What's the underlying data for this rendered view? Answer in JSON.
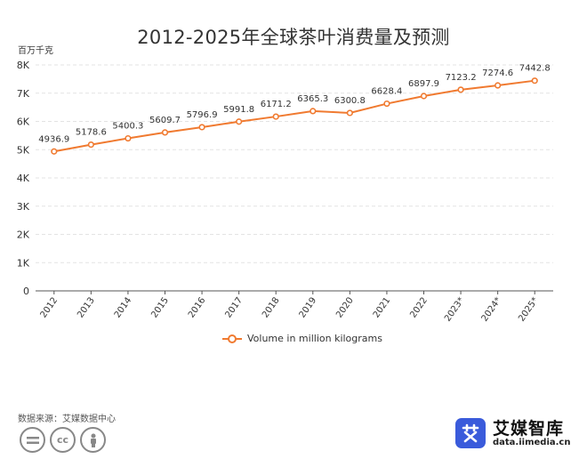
{
  "title": "2012-2025年全球茶叶消费量及预测",
  "unit_label": "百万千克",
  "source_text": "数据来源：艾媒数据中心",
  "brand": {
    "name": "艾媒智库",
    "url": "data.iimedia.cn"
  },
  "colors": {
    "line": "#f07a30",
    "grid": "#e3e3e3",
    "axis": "#555555",
    "brand": "#3a5bdb"
  },
  "chart_data": {
    "type": "line",
    "title": "2012-2025年全球茶叶消费量及预测",
    "ylabel": "百万千克",
    "xlabel": "",
    "categories": [
      "2012",
      "2013",
      "2014",
      "2015",
      "2016",
      "2017",
      "2018",
      "2019",
      "2020",
      "2021",
      "2022",
      "2023*",
      "2024*",
      "2025*"
    ],
    "series": [
      {
        "name": "Volume in million kilograms",
        "values": [
          4936.9,
          5178.6,
          5400.3,
          5609.7,
          5796.9,
          5991.8,
          6171.2,
          6365.3,
          6300.8,
          6628.4,
          6897.9,
          7123.2,
          7274.6,
          7442.8
        ]
      }
    ],
    "ylim": [
      0,
      8000
    ],
    "yticks": [
      0,
      1000,
      2000,
      3000,
      4000,
      5000,
      6000,
      7000,
      8000
    ],
    "ytick_labels": [
      "0",
      "1K",
      "2K",
      "3K",
      "4K",
      "5K",
      "6K",
      "7K",
      "8K"
    ],
    "grid": true,
    "legend_position": "bottom-center"
  }
}
